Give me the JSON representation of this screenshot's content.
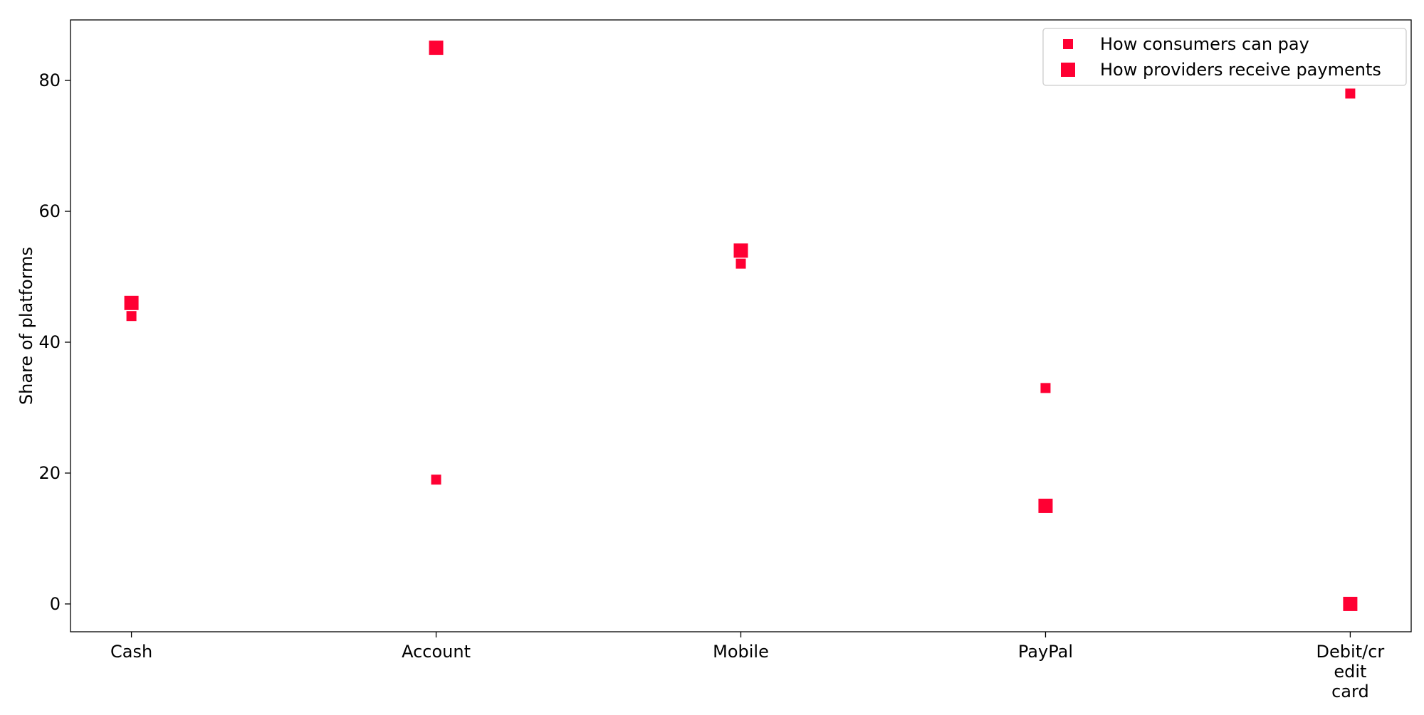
{
  "chart_data": {
    "type": "scatter",
    "title": "",
    "xlabel": "",
    "ylabel": "Share of platforms",
    "categories": [
      "Cash",
      "Account",
      "Mobile",
      "PayPal",
      "Debit/credit card"
    ],
    "category_tick_lines": [
      [
        "Cash"
      ],
      [
        "Account"
      ],
      [
        "Mobile"
      ],
      [
        "PayPal"
      ],
      [
        "Debit/cr",
        "edit",
        "card"
      ]
    ],
    "yticks": [
      0,
      20,
      40,
      60,
      80
    ],
    "ylim": [
      -4.25,
      89.25
    ],
    "grid": false,
    "legend_position": "top-right",
    "series": [
      {
        "name": "How consumers can pay",
        "marker": "square-small",
        "color": "#ff0033",
        "values": [
          44,
          19,
          52,
          33,
          78
        ]
      },
      {
        "name": "How providers receive payments",
        "marker": "square-large",
        "color": "#ff0033",
        "values": [
          46,
          85,
          54,
          15,
          0
        ]
      }
    ]
  }
}
